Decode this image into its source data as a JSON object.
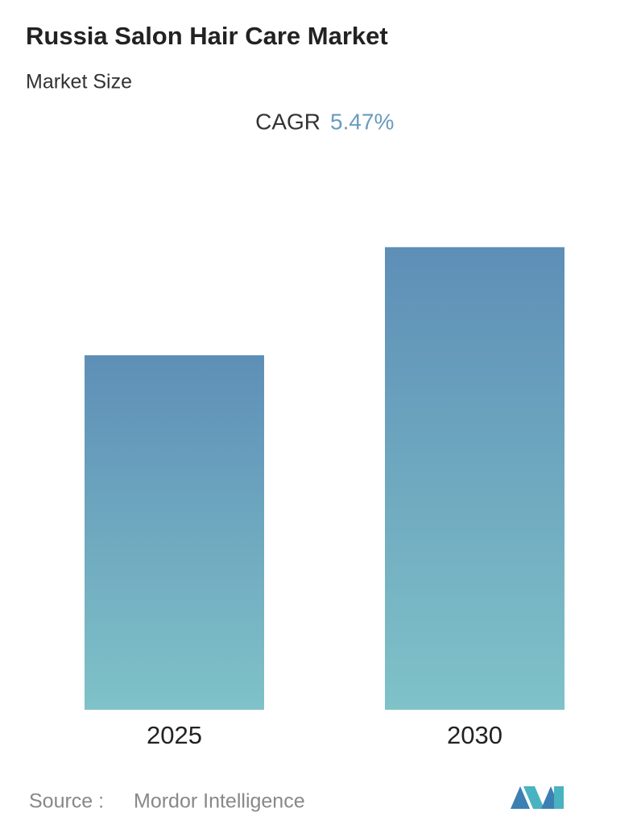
{
  "chart_data": {
    "type": "bar",
    "title": "Russia Salon Hair Care Market",
    "subtitle": "Market Size",
    "cagr_label": "CAGR",
    "cagr_value": "5.47%",
    "categories": [
      "2025",
      "2030"
    ],
    "values": [
      1.0,
      1.305
    ],
    "color_top": "#5e8fb7",
    "color_bottom": "#7fc2c8",
    "source_label": "Source :",
    "source": "Mordor Intelligence"
  }
}
